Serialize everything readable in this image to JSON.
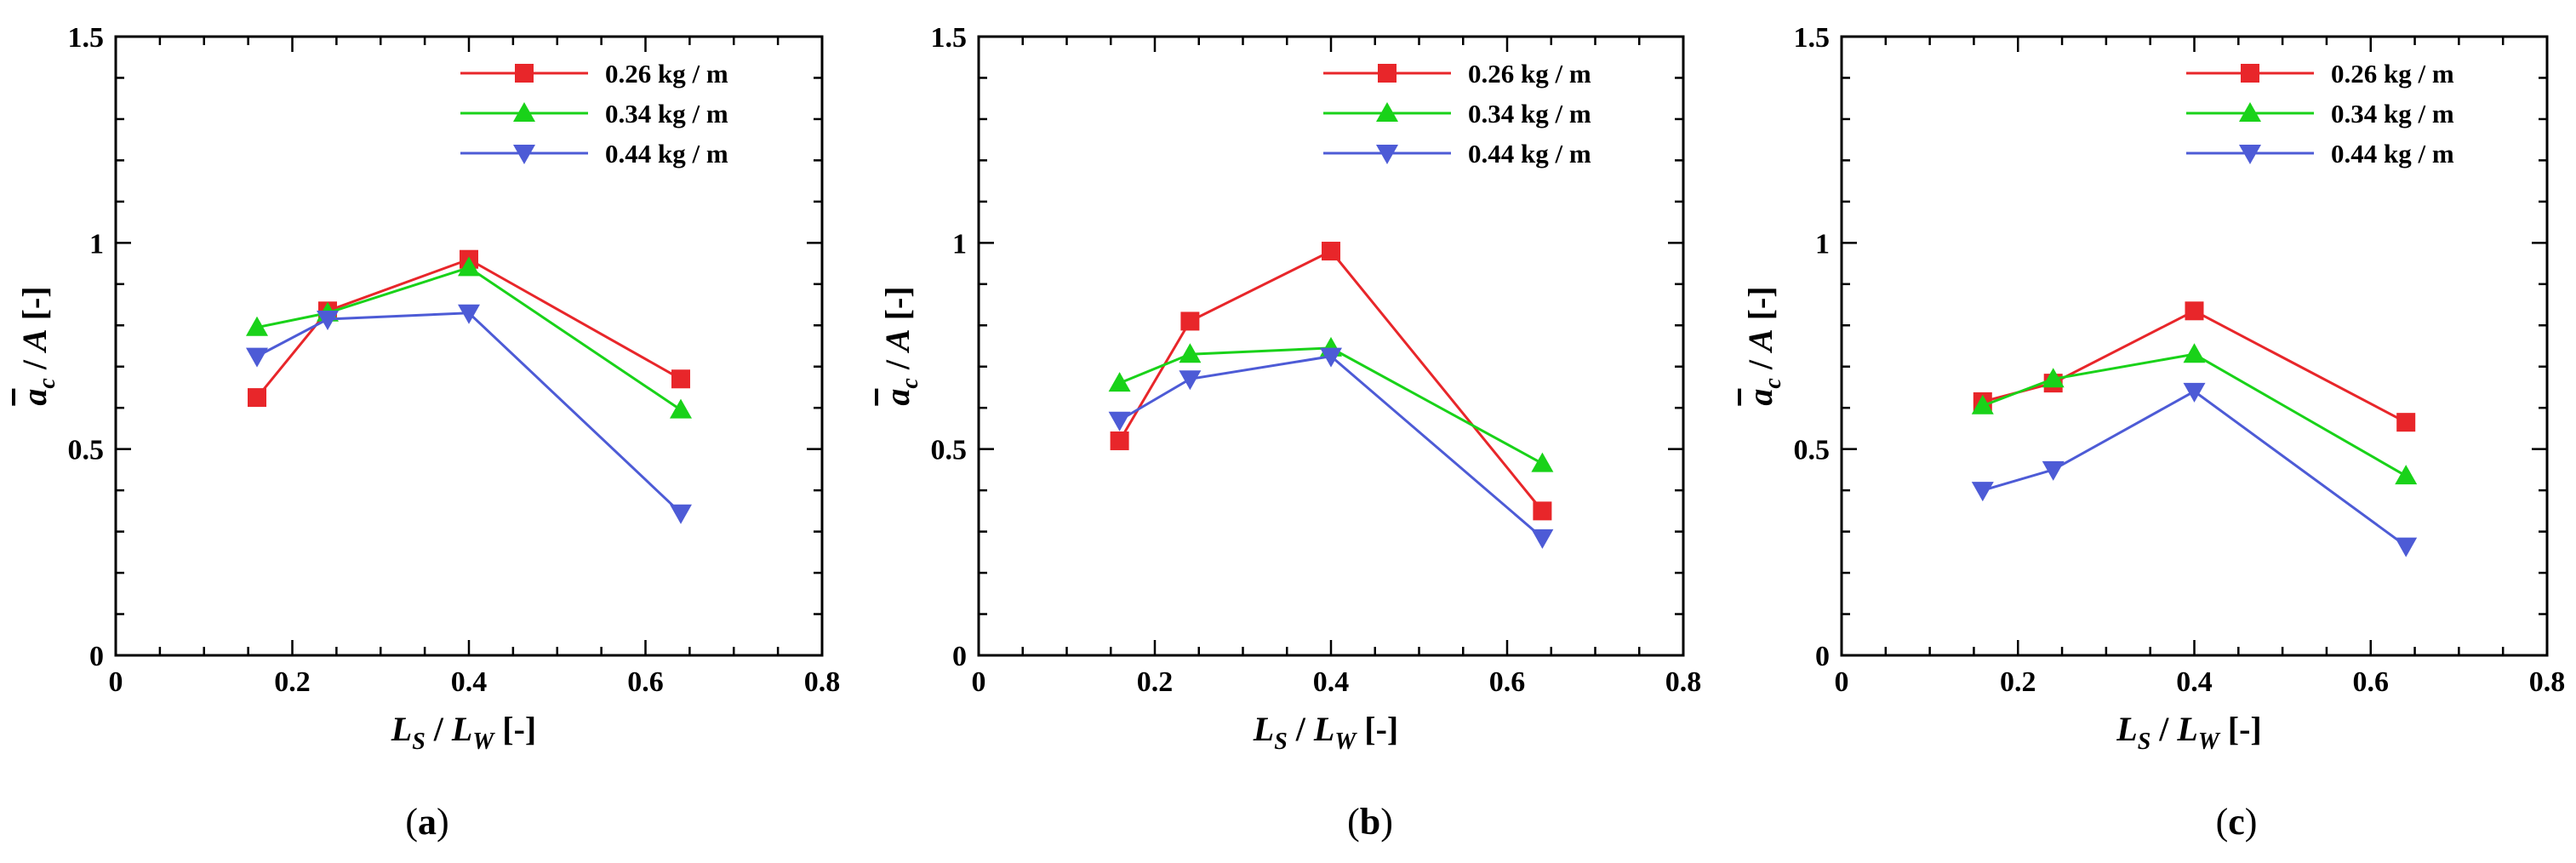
{
  "chart_data": [
    {
      "type": "line",
      "panel": "(a)",
      "panel_letter": "a",
      "xlabel": "L_S / L_W [-]",
      "ylabel": "a_c / A [-]",
      "xlim": [
        0,
        0.8
      ],
      "ylim": [
        0,
        1.5
      ],
      "xticks": [
        0,
        0.2,
        0.4,
        0.6,
        0.8
      ],
      "xtick_labels": [
        "0",
        "0.2",
        "0.4",
        "0.6",
        "0.8"
      ],
      "yticks": [
        0,
        0.5,
        1,
        1.5
      ],
      "ytick_labels": [
        "0",
        "0.5",
        "1",
        "1.5"
      ],
      "x": [
        0.16,
        0.24,
        0.4,
        0.64
      ],
      "series": [
        {
          "name": "0.26 kg / m",
          "color": "#e8262a",
          "marker": "square",
          "values": [
            0.625,
            0.835,
            0.96,
            0.67
          ]
        },
        {
          "name": "0.34 kg / m",
          "color": "#19d219",
          "marker": "triangle-up",
          "values": [
            0.795,
            0.83,
            0.94,
            0.595
          ]
        },
        {
          "name": "0.44 kg / m",
          "color": "#4d5bd6",
          "marker": "triangle-down",
          "values": [
            0.725,
            0.815,
            0.83,
            0.345
          ]
        }
      ]
    },
    {
      "type": "line",
      "panel": "(b)",
      "panel_letter": "b",
      "xlabel": "L_S / L_W [-]",
      "ylabel": "a_c / A [-]",
      "xlim": [
        0,
        0.8
      ],
      "ylim": [
        0,
        1.5
      ],
      "xticks": [
        0,
        0.2,
        0.4,
        0.6,
        0.8
      ],
      "xtick_labels": [
        "0",
        "0.2",
        "0.4",
        "0.6",
        "0.8"
      ],
      "yticks": [
        0,
        0.5,
        1,
        1.5
      ],
      "ytick_labels": [
        "0",
        "0.5",
        "1",
        "1.5"
      ],
      "x": [
        0.16,
        0.24,
        0.4,
        0.64
      ],
      "series": [
        {
          "name": "0.26 kg / m",
          "color": "#e8262a",
          "marker": "square",
          "values": [
            0.52,
            0.81,
            0.98,
            0.35
          ]
        },
        {
          "name": "0.34 kg / m",
          "color": "#19d219",
          "marker": "triangle-up",
          "values": [
            0.66,
            0.73,
            0.745,
            0.465
          ]
        },
        {
          "name": "0.44 kg / m",
          "color": "#4d5bd6",
          "marker": "triangle-down",
          "values": [
            0.57,
            0.67,
            0.725,
            0.285
          ]
        }
      ]
    },
    {
      "type": "line",
      "panel": "(c)",
      "panel_letter": "c",
      "xlabel": "L_S / L_W [-]",
      "ylabel": "a_c / A [-]",
      "xlim": [
        0,
        0.8
      ],
      "ylim": [
        0,
        1.5
      ],
      "xticks": [
        0,
        0.2,
        0.4,
        0.6,
        0.8
      ],
      "xtick_labels": [
        "0",
        "0.2",
        "0.4",
        "0.6",
        "0.8"
      ],
      "yticks": [
        0,
        0.5,
        1,
        1.5
      ],
      "ytick_labels": [
        "0",
        "0.5",
        "1",
        "1.5"
      ],
      "x": [
        0.16,
        0.24,
        0.4,
        0.64
      ],
      "series": [
        {
          "name": "0.26 kg / m",
          "color": "#e8262a",
          "marker": "square",
          "values": [
            0.615,
            0.66,
            0.835,
            0.565
          ]
        },
        {
          "name": "0.34 kg / m",
          "color": "#19d219",
          "marker": "triangle-up",
          "values": [
            0.605,
            0.67,
            0.73,
            0.435
          ]
        },
        {
          "name": "0.44 kg / m",
          "color": "#4d5bd6",
          "marker": "triangle-down",
          "values": [
            0.4,
            0.45,
            0.64,
            0.265
          ]
        }
      ]
    }
  ]
}
